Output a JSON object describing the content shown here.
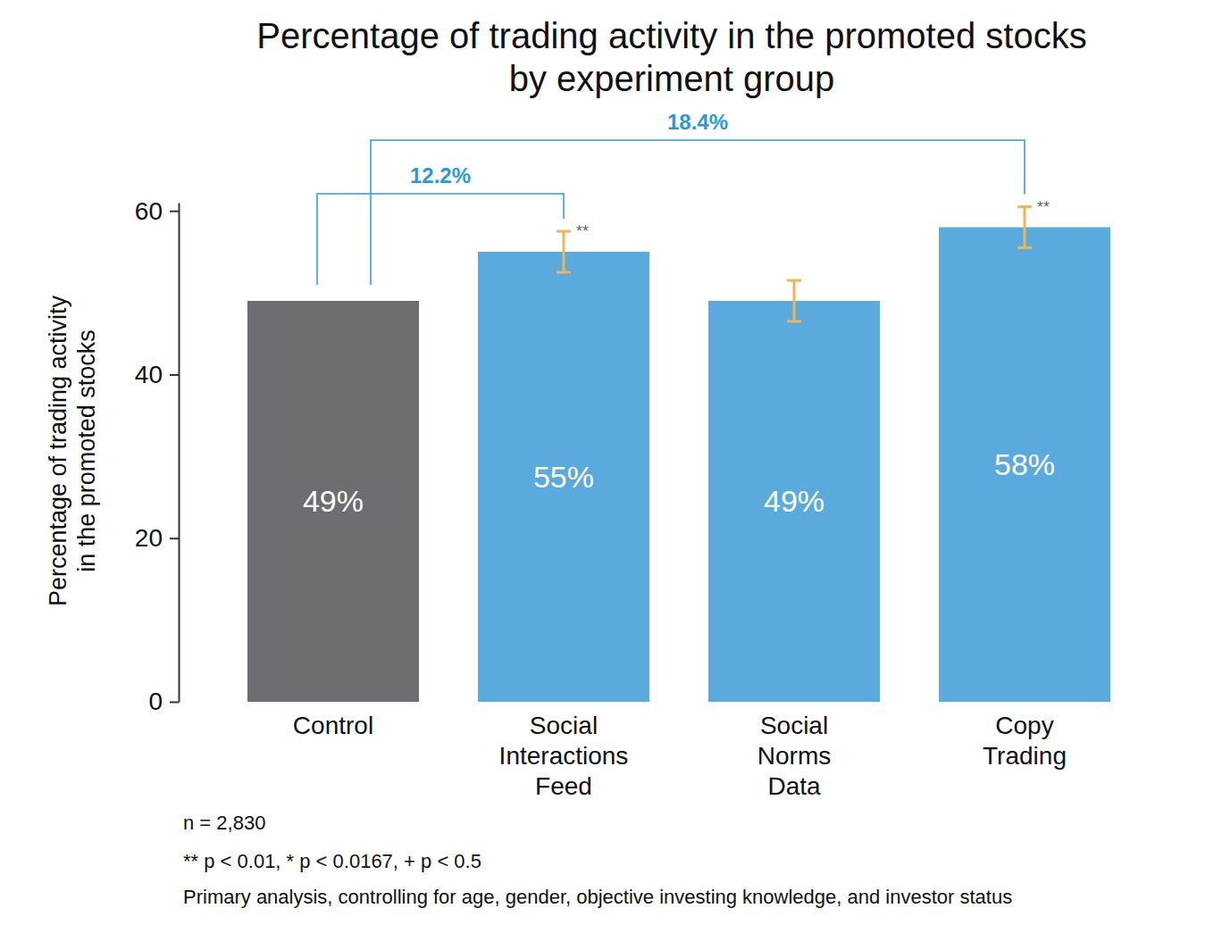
{
  "chart_data": {
    "type": "bar",
    "title": [
      "Percentage of trading activity in the promoted stocks",
      "by experiment group"
    ],
    "y_label": [
      "Percentage of trading activity",
      "in the promoted stocks"
    ],
    "categories": [
      "Control",
      "Social Interactions Feed",
      "Social Norms Data",
      "Copy Trading"
    ],
    "values": [
      49,
      55,
      49,
      58
    ],
    "value_labels": [
      "49%",
      "55%",
      "49%",
      "58%"
    ],
    "errors": [
      null,
      2.5,
      2.5,
      2.5
    ],
    "significance": [
      null,
      "**",
      null,
      "**"
    ],
    "colors": [
      "#6d6e71",
      "#5aaade",
      "#5aaade",
      "#5aaade"
    ],
    "data_labels": true,
    "grid": false,
    "ylim": [
      0,
      61
    ],
    "yticks": [
      0,
      20,
      40,
      60
    ],
    "annotations": [
      {
        "text": "12.2%",
        "from": 0,
        "to": 1
      },
      {
        "text": "18.4%",
        "from": 0,
        "to": 3
      }
    ],
    "notes": [
      "n = 2,830",
      "** p < 0.01, * p < 0.0167, + p < 0.5",
      "Primary analysis, controlling for age, gender, objective investing knowledge, and investor status"
    ]
  }
}
